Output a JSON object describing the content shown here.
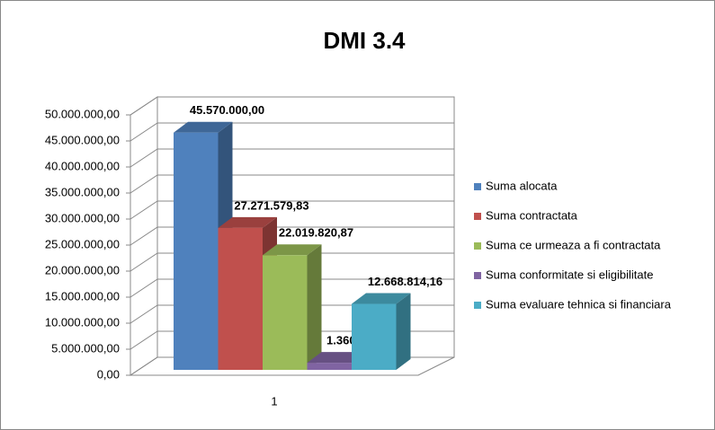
{
  "chart_data": {
    "type": "bar3d",
    "title": "DMI 3.4",
    "categories": [
      "1"
    ],
    "series": [
      {
        "name": "Suma alocata",
        "color": "#4f81bd",
        "values": [
          45570000.0
        ],
        "value_labels": [
          "45.570.000,00"
        ]
      },
      {
        "name": "Suma contractata",
        "color": "#c0504d",
        "values": [
          27271579.83
        ],
        "value_labels": [
          "27.271.579,83"
        ]
      },
      {
        "name": "Suma ce urmeaza a fi contractata",
        "color": "#9bbb59",
        "values": [
          22019820.87
        ],
        "value_labels": [
          "22.019.820,87"
        ]
      },
      {
        "name": "Suma conformitate si eligibilitate",
        "color": "#8064a2",
        "values": [
          1360737.04
        ],
        "value_labels": [
          "1.360.737,04"
        ]
      },
      {
        "name": "Suma evaluare tehnica si financiara",
        "color": "#4bacc6",
        "values": [
          12668814.16
        ],
        "value_labels": [
          "12.668.814,16"
        ]
      }
    ],
    "ylim": [
      0,
      50000000
    ],
    "yticks": [
      {
        "value": 0,
        "label": "0,00"
      },
      {
        "value": 5000000,
        "label": "5.000.000,00"
      },
      {
        "value": 10000000,
        "label": "10.000.000,00"
      },
      {
        "value": 15000000,
        "label": "15.000.000,00"
      },
      {
        "value": 20000000,
        "label": "20.000.000,00"
      },
      {
        "value": 25000000,
        "label": "25.000.000,00"
      },
      {
        "value": 30000000,
        "label": "30.000.000,00"
      },
      {
        "value": 35000000,
        "label": "35.000.000,00"
      },
      {
        "value": 40000000,
        "label": "40.000.000,00"
      },
      {
        "value": 45000000,
        "label": "45.000.000,00"
      },
      {
        "value": 50000000,
        "label": "50.000.000,00"
      }
    ],
    "grid": true,
    "legend": "right"
  }
}
